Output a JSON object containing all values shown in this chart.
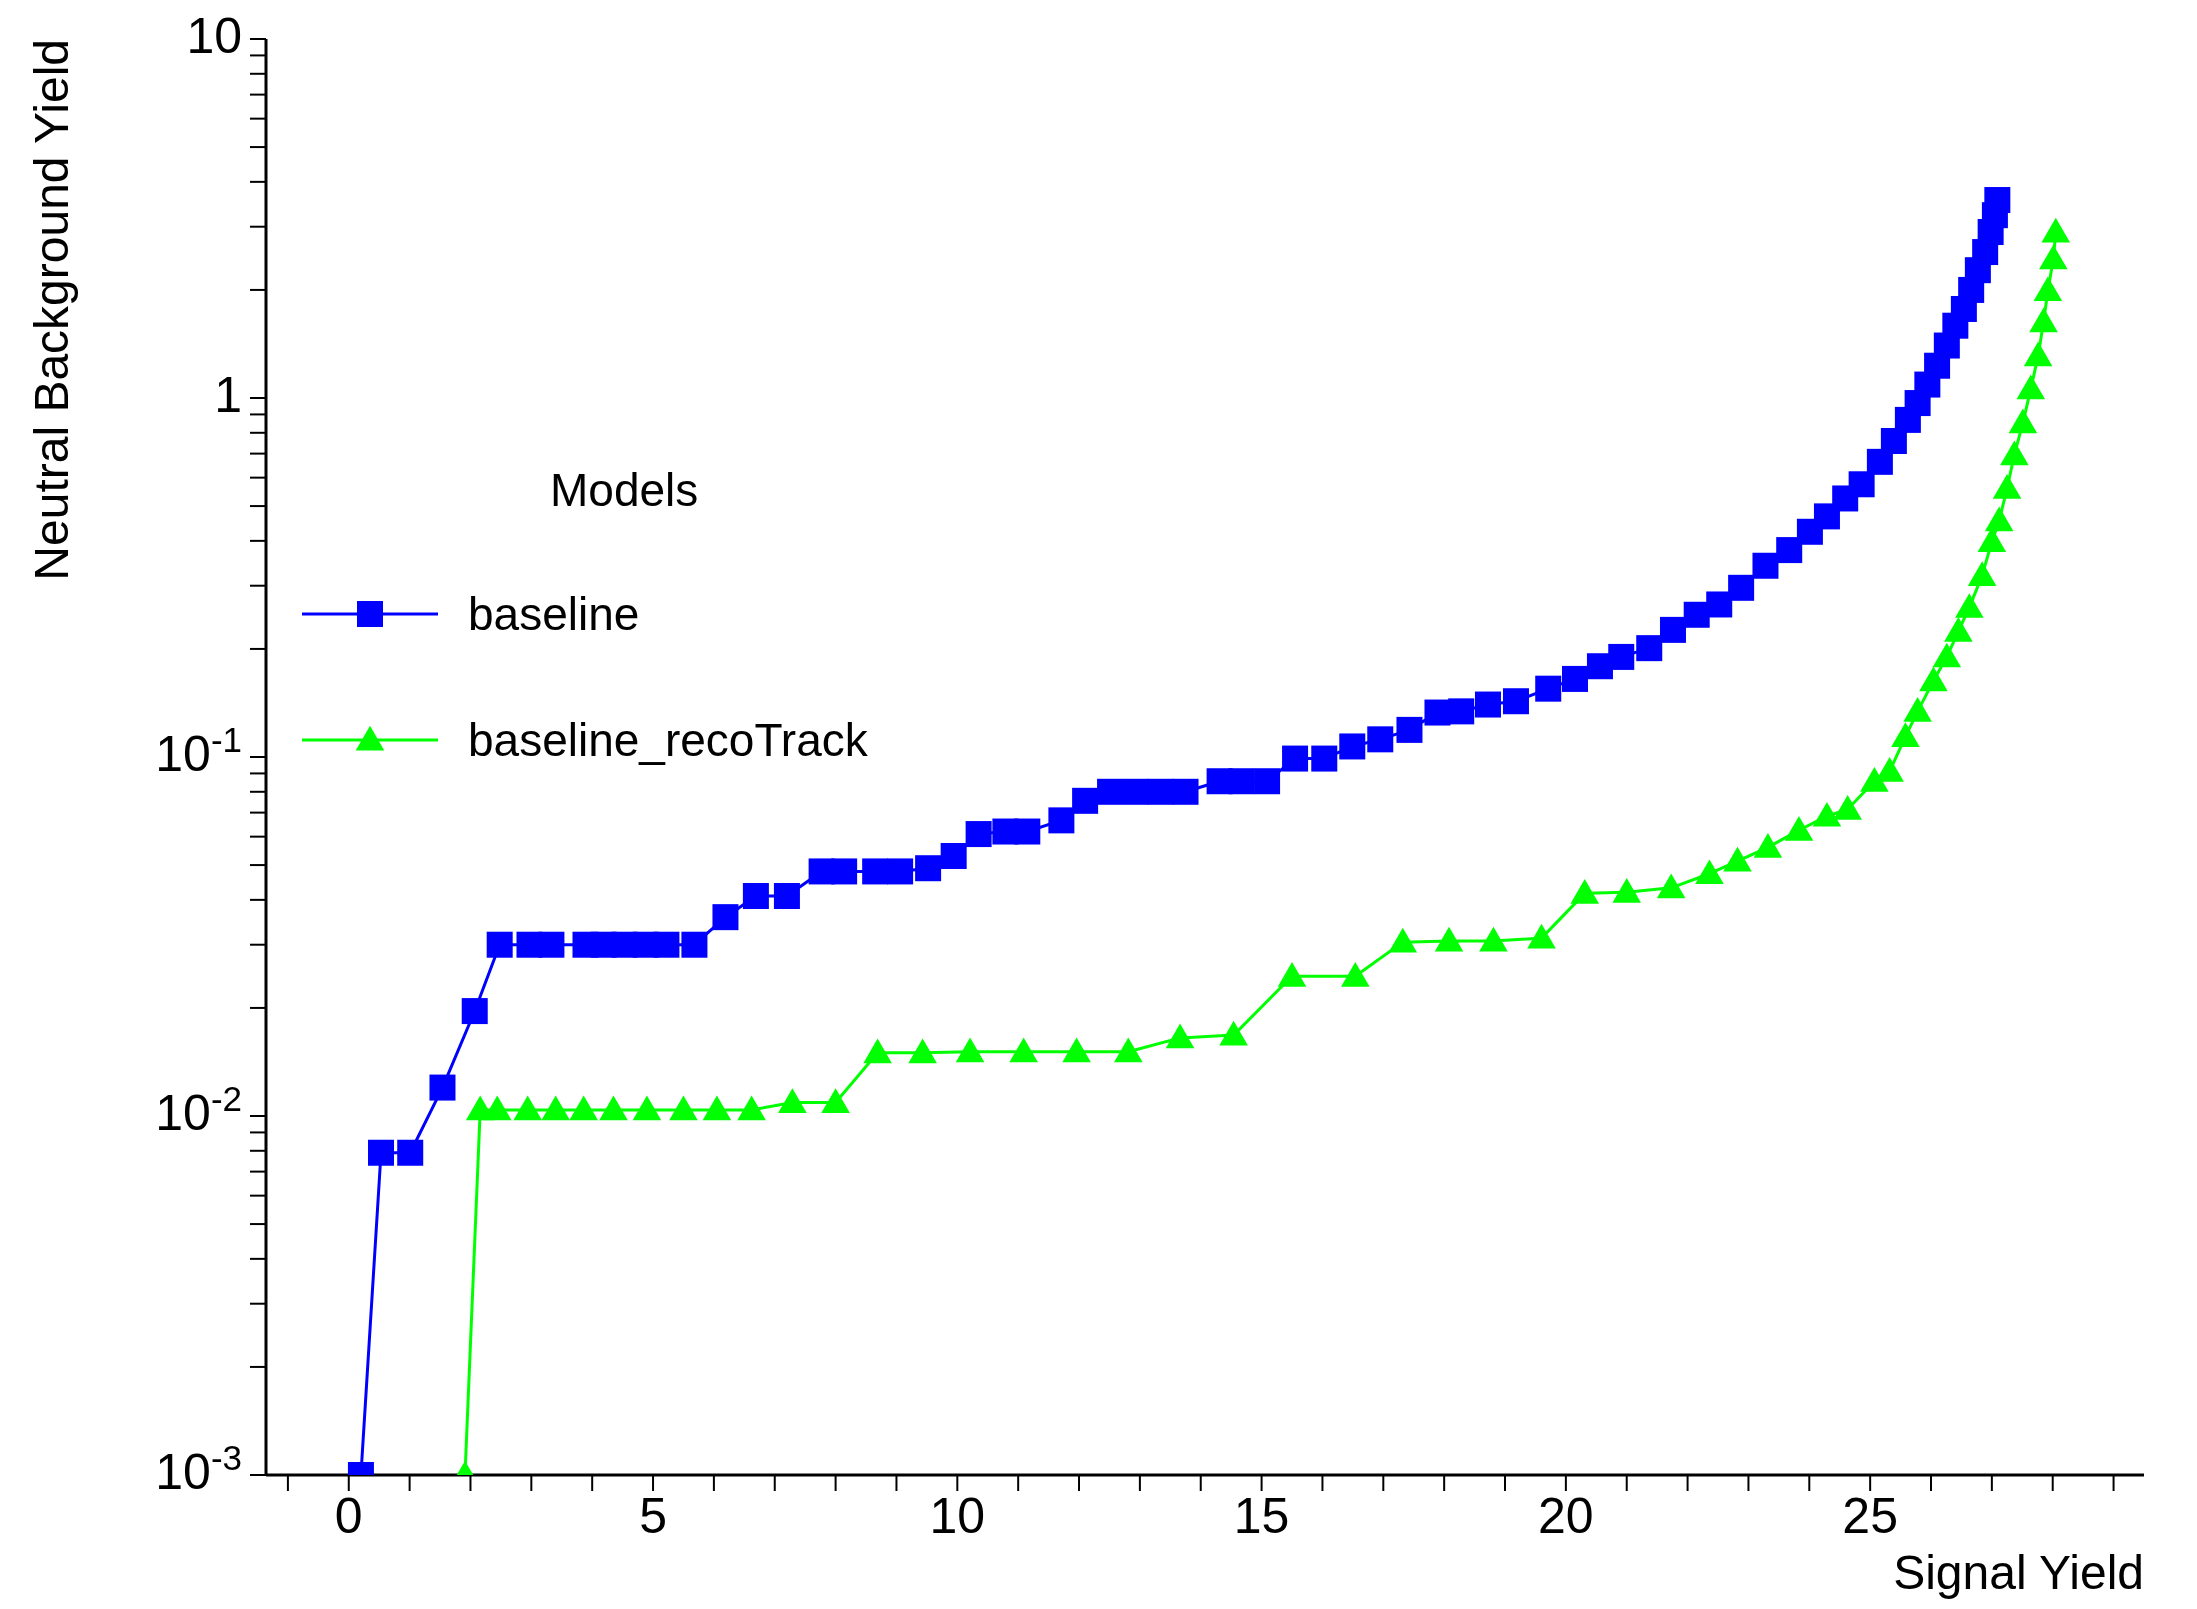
{
  "chart_data": {
    "type": "line",
    "xlabel": "Signal Yield",
    "ylabel": "Neutral Background Yield",
    "legend_title": "Models",
    "legend": "left",
    "log": "y",
    "grid": false,
    "line_style": "solid",
    "xlim": [
      -1.36,
      29.5
    ],
    "ylim": [
      0.001,
      10
    ],
    "xticks": [
      {
        "value": -1,
        "label": null
      },
      0,
      {
        "value": 1,
        "label": null
      },
      {
        "value": 2,
        "label": null
      },
      {
        "value": 3,
        "label": null
      },
      {
        "value": 4,
        "label": null
      },
      5,
      {
        "value": 6,
        "label": null
      },
      {
        "value": 7,
        "label": null
      },
      {
        "value": 8,
        "label": null
      },
      {
        "value": 9,
        "label": null
      },
      10,
      {
        "value": 11,
        "label": null
      },
      {
        "value": 12,
        "label": null
      },
      {
        "value": 13,
        "label": null
      },
      {
        "value": 14,
        "label": null
      },
      15,
      {
        "value": 16,
        "label": null
      },
      {
        "value": 17,
        "label": null
      },
      {
        "value": 18,
        "label": null
      },
      {
        "value": 19,
        "label": null
      },
      20,
      {
        "value": 21,
        "label": null
      },
      {
        "value": 22,
        "label": null
      },
      {
        "value": 23,
        "label": null
      },
      {
        "value": 24,
        "label": null
      },
      25,
      {
        "value": 26,
        "label": null
      },
      {
        "value": 27,
        "label": null
      },
      {
        "value": 28,
        "label": null
      },
      {
        "value": 29,
        "label": null
      }
    ],
    "yticks": [
      {
        "value": 0.001,
        "label": "10$^{-3}$"
      },
      {
        "value": 0.002,
        "label": null
      },
      {
        "value": 0.003,
        "label": null
      },
      {
        "value": 0.004,
        "label": null
      },
      {
        "value": 0.005,
        "label": null
      },
      {
        "value": 0.006,
        "label": null
      },
      {
        "value": 0.007,
        "label": null
      },
      {
        "value": 0.008,
        "label": null
      },
      {
        "value": 0.009,
        "label": null
      },
      {
        "value": 0.01,
        "label": "10$^{-2}$"
      },
      {
        "value": 0.02,
        "label": null
      },
      {
        "value": 0.03,
        "label": null
      },
      {
        "value": 0.04,
        "label": null
      },
      {
        "value": 0.05,
        "label": null
      },
      {
        "value": 0.06,
        "label": null
      },
      {
        "value": 0.07,
        "label": null
      },
      {
        "value": 0.08,
        "label": null
      },
      {
        "value": 0.09,
        "label": null
      },
      {
        "value": 0.1,
        "label": "10$^{-1}$"
      },
      {
        "value": 0.2,
        "label": null
      },
      {
        "value": 0.3,
        "label": null
      },
      {
        "value": 0.4,
        "label": null
      },
      {
        "value": 0.5,
        "label": null
      },
      {
        "value": 0.6,
        "label": null
      },
      {
        "value": 0.7,
        "label": null
      },
      {
        "value": 0.8,
        "label": null
      },
      {
        "value": 0.9,
        "label": null
      },
      1,
      {
        "value": 2,
        "label": null
      },
      {
        "value": 3,
        "label": null
      },
      {
        "value": 4,
        "label": null
      },
      {
        "value": 5,
        "label": null
      },
      {
        "value": 6,
        "label": null
      },
      {
        "value": 7,
        "label": null
      },
      {
        "value": 8,
        "label": null
      },
      {
        "value": 9,
        "label": null
      },
      10
    ],
    "series": [
      {
        "name": "baseline",
        "color": "#0000ff",
        "marker": "square",
        "x": [
          0.2,
          0.53,
          1.01,
          1.54,
          2.07,
          2.48,
          2.97,
          3.33,
          3.89,
          4.19,
          4.53,
          4.88,
          5.22,
          5.68,
          6.19,
          6.69,
          7.2,
          7.77,
          8.14,
          8.65,
          9.06,
          9.52,
          9.94,
          10.35,
          10.79,
          11.15,
          11.71,
          12.1,
          12.51,
          12.93,
          13.34,
          13.75,
          14.31,
          14.67,
          15.09,
          15.55,
          16.03,
          16.49,
          16.95,
          17.43,
          17.89,
          18.28,
          18.72,
          19.18,
          19.71,
          20.15,
          20.56,
          20.91,
          21.37,
          21.76,
          22.15,
          22.52,
          22.88,
          23.28,
          23.67,
          24.01,
          24.29,
          24.59,
          24.86,
          25.16,
          25.39,
          25.62,
          25.78,
          25.94,
          26.1,
          26.26,
          26.4,
          26.54,
          26.66,
          26.77,
          26.89,
          26.98,
          27.05,
          27.09
        ],
        "values": [
          0.001,
          0.0079,
          0.0079,
          0.012,
          0.0196,
          0.03,
          0.03,
          0.03,
          0.03,
          0.03,
          0.03,
          0.03,
          0.03,
          0.03,
          0.0358,
          0.041,
          0.041,
          0.048,
          0.048,
          0.048,
          0.048,
          0.049,
          0.053,
          0.061,
          0.062,
          0.062,
          0.0666,
          0.0755,
          0.08,
          0.08,
          0.08,
          0.08,
          0.0856,
          0.0856,
          0.0856,
          0.099,
          0.099,
          0.107,
          0.112,
          0.119,
          0.133,
          0.134,
          0.14,
          0.143,
          0.155,
          0.165,
          0.179,
          0.19,
          0.201,
          0.226,
          0.249,
          0.266,
          0.296,
          0.341,
          0.377,
          0.424,
          0.468,
          0.525,
          0.575,
          0.664,
          0.759,
          0.869,
          0.968,
          1.09,
          1.23,
          1.4,
          1.59,
          1.77,
          2.0,
          2.27,
          2.55,
          2.9,
          3.23,
          3.56
        ]
      },
      {
        "name": "baseline_recoTrack",
        "color": "#00ff00",
        "marker": "triangle",
        "x": [
          1.91,
          2.16,
          2.44,
          2.94,
          3.4,
          3.86,
          4.35,
          4.9,
          5.5,
          6.05,
          6.62,
          7.29,
          8.0,
          8.69,
          9.43,
          10.21,
          11.09,
          11.96,
          12.81,
          13.66,
          14.54,
          15.5,
          16.54,
          17.32,
          18.08,
          18.81,
          19.6,
          20.31,
          21.0,
          21.73,
          22.36,
          22.82,
          23.32,
          23.83,
          24.29,
          24.63,
          25.07,
          25.32,
          25.58,
          25.78,
          26.04,
          26.26,
          26.45,
          26.63,
          26.84,
          27.0,
          27.12,
          27.25,
          27.37,
          27.51,
          27.64,
          27.76,
          27.85,
          27.92,
          28.01,
          28.05
        ],
        "values": [
          0.001,
          0.0104,
          0.0104,
          0.0104,
          0.0104,
          0.0104,
          0.0104,
          0.0104,
          0.0104,
          0.0104,
          0.0104,
          0.0109,
          0.0109,
          0.015,
          0.015,
          0.0151,
          0.0151,
          0.0151,
          0.0151,
          0.0165,
          0.0168,
          0.0245,
          0.0245,
          0.0305,
          0.0307,
          0.0307,
          0.0313,
          0.0417,
          0.042,
          0.0432,
          0.0473,
          0.0513,
          0.056,
          0.0625,
          0.0684,
          0.0715,
          0.0856,
          0.0912,
          0.114,
          0.134,
          0.163,
          0.19,
          0.224,
          0.261,
          0.32,
          0.398,
          0.455,
          0.56,
          0.695,
          0.853,
          1.06,
          1.31,
          1.63,
          1.99,
          2.44,
          2.9
        ]
      }
    ]
  }
}
